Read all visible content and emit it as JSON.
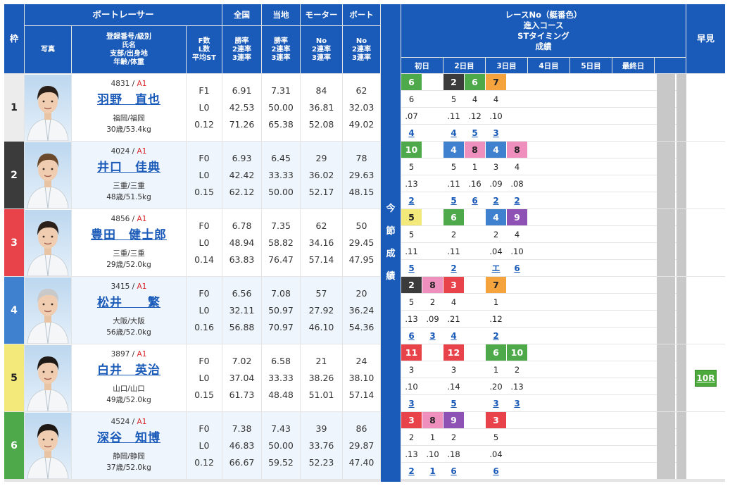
{
  "header": {
    "waku": "枠",
    "racer": "ボートレーサー",
    "photo": "写真",
    "reg_lines": "登録番号/級別\n氏名\n支部/出身地\n年齢/体重",
    "fl_lines": "F数\nL数\n平均ST",
    "zenkoku": "全国",
    "zenkoku_sub": "勝率\n2連率\n3連率",
    "touchi": "当地",
    "touchi_sub": "勝率\n2連率\n3連率",
    "motor": "モーター",
    "motor_sub": "No\n2連率\n3連率",
    "boat": "ボート",
    "boat_sub": "No\n2連率\n3連率",
    "race_info": "レースNo（艇番色）\n進入コース\nSTタイミング\n成績",
    "days": [
      "初日",
      "2日目",
      "3日目",
      "4日目",
      "5日目",
      "最終日"
    ],
    "hayami": "早見",
    "konsetsu": [
      "今",
      "節",
      "成",
      "績"
    ]
  },
  "frame_colors": [
    "#ececec",
    "#3b3b3b",
    "#e8424a",
    "#3f80cf",
    "#f2e97a",
    "#4ea94b"
  ],
  "frame_text_colors": [
    "#222",
    "#fff",
    "#fff",
    "#fff",
    "#222",
    "#fff"
  ],
  "boat_colors": {
    "1": "#ffffff",
    "2": "#3b3b3b",
    "3": "#e8424a",
    "4": "#3f80cf",
    "5": "#f2e97a",
    "6": "#4ea94b",
    "7": "#f5a43d",
    "8": "#ee8fbd",
    "9": "#8e52b5",
    "10": "#4ea94b",
    "11": "#e8424a",
    "12": "#e8424a"
  },
  "boat_text_colors": {
    "1": "#222",
    "2": "#fff",
    "3": "#fff",
    "4": "#fff",
    "5": "#222",
    "6": "#fff",
    "7": "#222",
    "8": "#222",
    "9": "#fff",
    "10": "#fff",
    "11": "#fff",
    "12": "#fff"
  },
  "racers": [
    {
      "frame": "1",
      "reg": "4831",
      "cls": "A1",
      "name": "羽野　直也",
      "branch": "福岡/福岡",
      "agewt": "30歳/53.4kg",
      "f": "F1",
      "l": "L0",
      "st": "0.12",
      "zen": [
        "6.91",
        "42.53",
        "71.26"
      ],
      "toc": [
        "7.31",
        "50.00",
        "65.38"
      ],
      "mot": [
        "84",
        "36.81",
        "52.08"
      ],
      "bt": [
        "62",
        "32.03",
        "49.02"
      ],
      "races": [
        {
          "r": "6",
          "c": "6",
          "s": ".07",
          "res": "4"
        },
        null,
        {
          "r": "2",
          "c": "5",
          "s": ".11",
          "res": "4"
        },
        {
          "r": "6",
          "c": "4",
          "s": ".12",
          "res": "5"
        },
        {
          "r": "7",
          "c": "4",
          "s": ".10",
          "res": "3"
        }
      ],
      "hayami": ""
    },
    {
      "frame": "2",
      "reg": "4024",
      "cls": "A1",
      "name": "井口　佳典",
      "branch": "三重/三重",
      "agewt": "48歳/51.5kg",
      "f": "F0",
      "l": "L0",
      "st": "0.15",
      "zen": [
        "6.93",
        "42.42",
        "62.12"
      ],
      "toc": [
        "6.45",
        "33.33",
        "50.00"
      ],
      "mot": [
        "29",
        "36.02",
        "52.17"
      ],
      "bt": [
        "78",
        "29.63",
        "48.15"
      ],
      "races": [
        {
          "r": "10",
          "c": "5",
          "s": ".13",
          "res": "2"
        },
        null,
        {
          "r": "4",
          "c": "5",
          "s": ".11",
          "res": "5"
        },
        {
          "r": "8",
          "c": "1",
          "s": ".16",
          "res": "6"
        },
        {
          "r": "4",
          "c": "3",
          "s": ".09",
          "res": "2"
        },
        {
          "r": "8",
          "c": "4",
          "s": ".08",
          "res": "2"
        }
      ],
      "hayami": ""
    },
    {
      "frame": "3",
      "reg": "4856",
      "cls": "A1",
      "name": "豊田　健士郎",
      "branch": "三重/三重",
      "agewt": "29歳/52.0kg",
      "f": "F0",
      "l": "L0",
      "st": "0.14",
      "zen": [
        "6.78",
        "48.94",
        "63.83"
      ],
      "toc": [
        "7.35",
        "58.82",
        "76.47"
      ],
      "mot": [
        "62",
        "34.16",
        "57.14"
      ],
      "bt": [
        "50",
        "29.45",
        "47.95"
      ],
      "races": [
        {
          "r": "5",
          "c": "5",
          "s": ".11",
          "res": "5"
        },
        null,
        {
          "r": "6",
          "c": "2",
          "s": ".11",
          "res": "2"
        },
        null,
        {
          "r": "4",
          "c": "2",
          "s": ".04",
          "res": "エ"
        },
        {
          "r": "9",
          "c": "4",
          "s": ".10",
          "res": "6"
        }
      ],
      "hayami": ""
    },
    {
      "frame": "4",
      "reg": "3415",
      "cls": "A1",
      "name": "松井　　繁",
      "branch": "大阪/大阪",
      "agewt": "56歳/52.0kg",
      "f": "F0",
      "l": "L0",
      "st": "0.16",
      "zen": [
        "6.56",
        "32.11",
        "56.88"
      ],
      "toc": [
        "7.08",
        "50.97",
        "70.97"
      ],
      "mot": [
        "57",
        "27.92",
        "46.10"
      ],
      "bt": [
        "20",
        "36.24",
        "54.36"
      ],
      "races": [
        {
          "r": "2",
          "c": "5",
          "s": ".13",
          "res": "6"
        },
        {
          "r": "8",
          "c": "2",
          "s": ".09",
          "res": "3"
        },
        {
          "r": "3",
          "c": "4",
          "s": ".21",
          "res": "4"
        },
        null,
        {
          "r": "7",
          "c": "1",
          "s": ".12",
          "res": "2"
        }
      ],
      "hayami": ""
    },
    {
      "frame": "5",
      "reg": "3897",
      "cls": "A1",
      "name": "白井　英治",
      "branch": "山口/山口",
      "agewt": "49歳/52.0kg",
      "f": "F0",
      "l": "L0",
      "st": "0.15",
      "zen": [
        "7.02",
        "37.04",
        "61.73"
      ],
      "toc": [
        "6.58",
        "33.33",
        "48.48"
      ],
      "mot": [
        "21",
        "38.26",
        "51.01"
      ],
      "bt": [
        "24",
        "38.10",
        "57.14"
      ],
      "races": [
        {
          "r": "11",
          "c": "3",
          "s": ".10",
          "res": "3"
        },
        null,
        {
          "r": "12",
          "c": "3",
          "s": ".14",
          "res": "5"
        },
        null,
        {
          "r": "6",
          "c": "1",
          "s": ".20",
          "res": "3"
        },
        {
          "r": "10",
          "c": "2",
          "s": ".13",
          "res": "3"
        }
      ],
      "hayami": "10R"
    },
    {
      "frame": "6",
      "reg": "4524",
      "cls": "A1",
      "name": "深谷　知博",
      "branch": "静岡/静岡",
      "agewt": "37歳/52.0kg",
      "f": "F0",
      "l": "L0",
      "st": "0.12",
      "zen": [
        "7.38",
        "46.83",
        "66.67"
      ],
      "toc": [
        "7.43",
        "50.00",
        "59.52"
      ],
      "mot": [
        "39",
        "33.76",
        "52.23"
      ],
      "bt": [
        "86",
        "29.87",
        "47.40"
      ],
      "races": [
        {
          "r": "3",
          "c": "2",
          "s": ".13",
          "res": "2"
        },
        {
          "r": "8",
          "c": "1",
          "s": ".10",
          "res": "1"
        },
        {
          "r": "9",
          "c": "2",
          "s": ".18",
          "res": "6"
        },
        null,
        {
          "r": "3",
          "c": "5",
          "s": ".04",
          "res": "6"
        }
      ],
      "hayami": ""
    }
  ]
}
